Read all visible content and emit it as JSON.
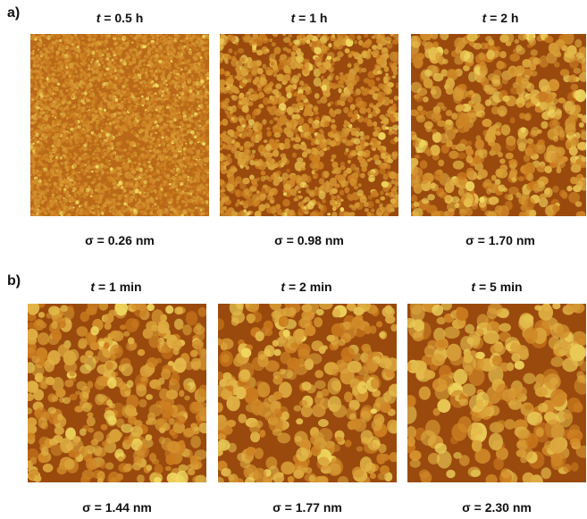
{
  "panels": {
    "a": {
      "label": "a)",
      "images": [
        {
          "time_var": "t",
          "time_rest": " = 0.5 h",
          "sigma": "σ = 0.26 nm",
          "roughness": 0.26
        },
        {
          "time_var": "t",
          "time_rest": " = 1 h",
          "sigma": "σ = 0.98 nm",
          "roughness": 0.98
        },
        {
          "time_var": "t",
          "time_rest": " = 2 h",
          "sigma": "σ = 1.70 nm",
          "roughness": 1.7
        }
      ]
    },
    "b": {
      "label": "b)",
      "images": [
        {
          "time_var": "t",
          "time_rest": " = 1 min",
          "sigma": "σ = 1.44 nm",
          "roughness": 1.44
        },
        {
          "time_var": "t",
          "time_rest": " = 2 min",
          "sigma": "σ = 1.77 nm",
          "roughness": 1.77
        },
        {
          "time_var": "t",
          "time_rest": " = 5 min",
          "sigma": "σ = 2.30 nm",
          "roughness": 2.3
        }
      ]
    }
  },
  "colors": {
    "valley": "#8a3a08",
    "mid": "#c9781c",
    "peak": "#f0d860"
  }
}
